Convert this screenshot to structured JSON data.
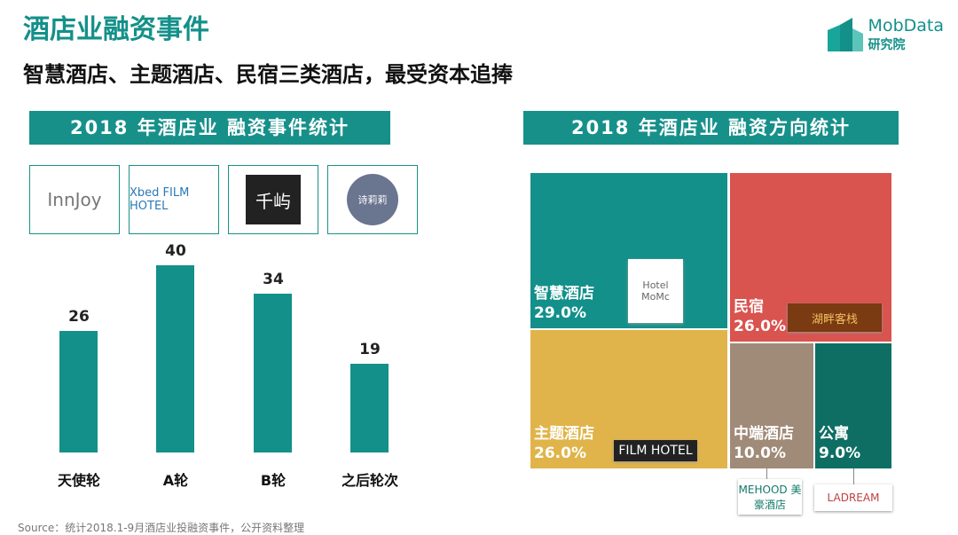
{
  "title": "酒店业融资事件",
  "subtitle": "智慧酒店、主题酒店、民宿三类酒店，最受资本追捧",
  "brand": {
    "name": "MobData",
    "sub": "研究院"
  },
  "source": "Source：统计2018.1-9月酒店业投融资事件，公开资料整理",
  "logos": [
    "InnJoy",
    "Xbed FILM HOTEL",
    "千屿",
    "诗莉莉"
  ],
  "colors": {
    "teal": "#13908a",
    "red": "#d9534f",
    "gold": "#e0b44a",
    "brown": "#a08a78",
    "darkteal": "#0f6e64"
  },
  "chart_data": [
    {
      "type": "bar",
      "title": "2018 年酒店业 融资事件统计",
      "categories": [
        "天使轮",
        "A轮",
        "B轮",
        "之后轮次"
      ],
      "values": [
        26,
        40,
        34,
        19
      ],
      "ylim": [
        0,
        40
      ],
      "grid": false
    },
    {
      "type": "treemap",
      "title": "2018 年酒店业 融资方向统计",
      "items": [
        {
          "label": "智慧酒店",
          "value": 29.0,
          "display": "29.0%",
          "color": "#13908a",
          "logo": "Hotel MoMc"
        },
        {
          "label": "民宿",
          "value": 26.0,
          "display": "26.0%",
          "color": "#d9534f",
          "logo": "湖畔客栈"
        },
        {
          "label": "主题酒店",
          "value": 26.0,
          "display": "26.0%",
          "color": "#e0b44a",
          "logo": "FILM HOTEL"
        },
        {
          "label": "中端酒店",
          "value": 10.0,
          "display": "10.0%",
          "color": "#a08a78",
          "logo": "MEHOOD 美豪酒店"
        },
        {
          "label": "公寓",
          "value": 9.0,
          "display": "9.0%",
          "color": "#0f6e64",
          "logo": "LADREAM"
        }
      ]
    }
  ]
}
